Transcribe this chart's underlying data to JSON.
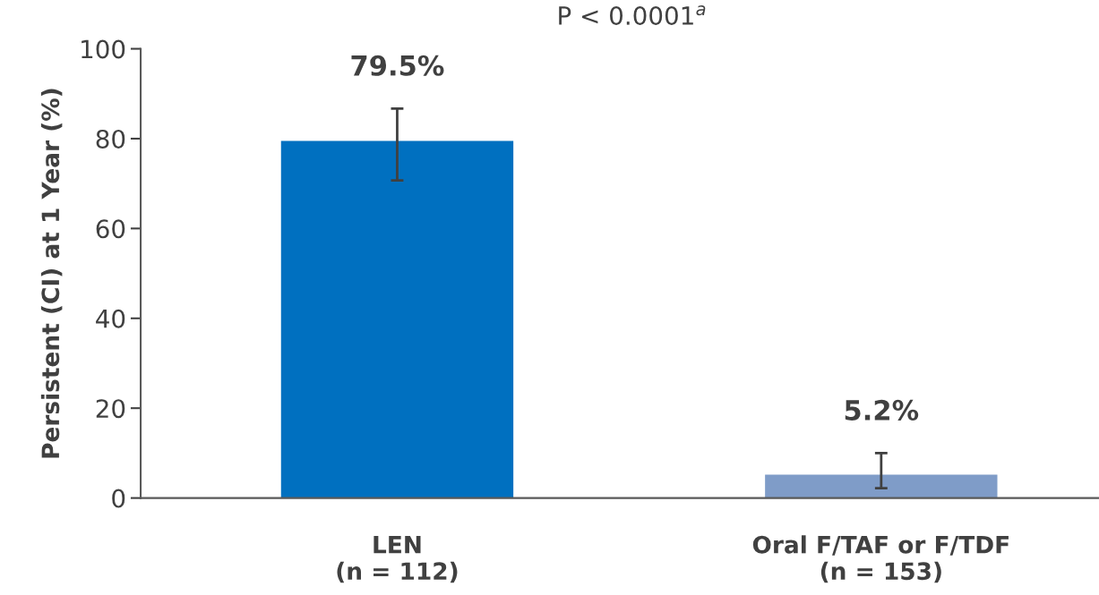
{
  "chart_data": {
    "type": "bar",
    "title": "P < 0.0001$^{a}$",
    "ylabel": "Persistent (CI) at 1 Year (%)",
    "categories": [
      "LEN\n(n = 112)",
      "Oral F/TAF or F/TDF\n(n = 153)"
    ],
    "values": [
      79.5,
      5.2
    ],
    "colors": [
      "#0070c0",
      "#7f9cc8"
    ],
    "errors": [
      [
        70.7,
        86.7
      ],
      [
        2.2,
        10.0
      ]
    ],
    "value_labels": [
      "79.5%",
      "5.2%"
    ],
    "ylim": [
      0,
      100
    ],
    "yticks": [
      0,
      20,
      40,
      60,
      80,
      100
    ],
    "grid": false,
    "legend": false
  }
}
